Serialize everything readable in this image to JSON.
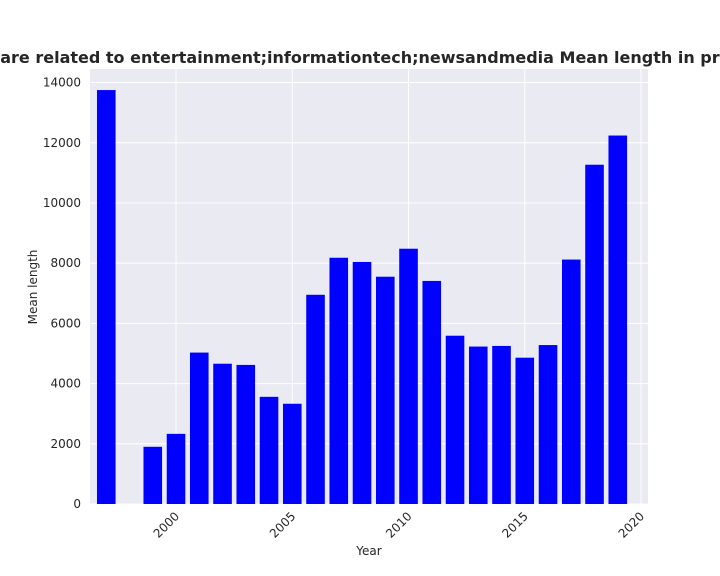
{
  "chart_data": {
    "type": "bar",
    "title": "Categories are related to entertainment;informationtech;newsandmedia Mean length in privacy policies",
    "xlabel": "Year",
    "ylabel": "Mean length",
    "x": [
      1997,
      1999,
      2000,
      2001,
      2002,
      2003,
      2004,
      2005,
      2006,
      2007,
      2008,
      2009,
      2010,
      2011,
      2012,
      2013,
      2014,
      2015,
      2016,
      2017,
      2018,
      2019
    ],
    "values": [
      13750,
      1900,
      2330,
      5030,
      4660,
      4620,
      3560,
      3330,
      6950,
      8180,
      8040,
      7550,
      8480,
      7410,
      5590,
      5230,
      5250,
      4860,
      5280,
      8120,
      11270,
      12240
    ],
    "xlim": [
      1996.3,
      2020.3
    ],
    "ylim": [
      0,
      14450
    ],
    "xticks": [
      2000,
      2005,
      2010,
      2015,
      2020
    ],
    "yticks": [
      0,
      2000,
      4000,
      6000,
      8000,
      10000,
      12000,
      14000
    ],
    "bar_color": "#0000ff",
    "background_color": "#eaeaf2",
    "grid": true
  }
}
